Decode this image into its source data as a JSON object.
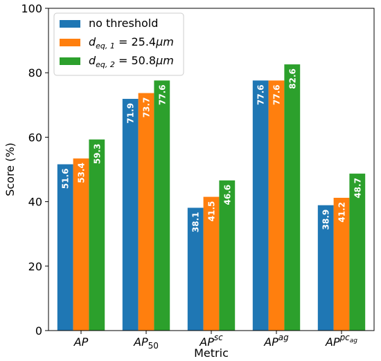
{
  "chart_data": {
    "type": "bar",
    "categories": [
      {
        "base": "AP",
        "sub": "",
        "sup": "",
        "supsub": ""
      },
      {
        "base": "AP",
        "sub": "50",
        "sup": "",
        "supsub": ""
      },
      {
        "base": "AP",
        "sub": "",
        "sup": "sc",
        "supsub": ""
      },
      {
        "base": "AP",
        "sub": "",
        "sup": "ag",
        "supsub": ""
      },
      {
        "base": "AP",
        "sub": "",
        "sup": "pc",
        "supsub": "ag"
      }
    ],
    "series": [
      {
        "name": "no threshold",
        "color": "#1f77b4",
        "values": [
          51.6,
          71.9,
          38.1,
          77.6,
          38.9
        ]
      },
      {
        "name": "d_eq,1 = 25.4μm",
        "legend": {
          "base": "d",
          "sub": "eq, 1",
          "rest": " = 25.4",
          "unit": "μm"
        },
        "color": "#ff7f0e",
        "values": [
          53.4,
          73.7,
          41.5,
          77.6,
          41.2
        ]
      },
      {
        "name": "d_eq,2 = 50.8μm",
        "legend": {
          "base": "d",
          "sub": "eq, 2",
          "rest": " = 50.8",
          "unit": "μm"
        },
        "color": "#2ca02c",
        "values": [
          59.3,
          77.6,
          46.6,
          82.6,
          48.7
        ]
      }
    ],
    "xlabel": "Metric",
    "ylabel": "Score (%)",
    "ylim": [
      0,
      100
    ],
    "yticks": [
      0,
      20,
      40,
      60,
      80,
      100
    ],
    "grid": false,
    "legend_position": "top-left"
  }
}
